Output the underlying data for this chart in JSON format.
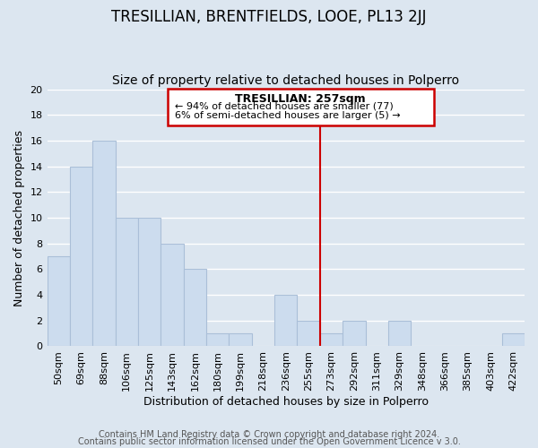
{
  "title": "TRESILLIAN, BRENTFIELDS, LOOE, PL13 2JJ",
  "subtitle": "Size of property relative to detached houses in Polperro",
  "xlabel": "Distribution of detached houses by size in Polperro",
  "ylabel": "Number of detached properties",
  "categories": [
    "50sqm",
    "69sqm",
    "88sqm",
    "106sqm",
    "125sqm",
    "143sqm",
    "162sqm",
    "180sqm",
    "199sqm",
    "218sqm",
    "236sqm",
    "255sqm",
    "273sqm",
    "292sqm",
    "311sqm",
    "329sqm",
    "348sqm",
    "366sqm",
    "385sqm",
    "403sqm",
    "422sqm"
  ],
  "values": [
    7,
    14,
    16,
    10,
    10,
    8,
    6,
    1,
    1,
    0,
    4,
    2,
    1,
    2,
    0,
    2,
    0,
    0,
    0,
    0,
    1
  ],
  "bar_color": "#ccdcee",
  "bar_edgecolor": "#aabfd8",
  "background_color": "#dce6f0",
  "grid_color": "#ffffff",
  "marker_line_color": "#cc0000",
  "annotation_box_color": "#ffffff",
  "annotation_box_edgecolor": "#cc0000",
  "marker_label": "TRESILLIAN: 257sqm",
  "annotation_line1": "← 94% of detached houses are smaller (77)",
  "annotation_line2": "6% of semi-detached houses are larger (5) →",
  "ylim": [
    0,
    20
  ],
  "yticks": [
    0,
    2,
    4,
    6,
    8,
    10,
    12,
    14,
    16,
    18,
    20
  ],
  "footer1": "Contains HM Land Registry data © Crown copyright and database right 2024.",
  "footer2": "Contains public sector information licensed under the Open Government Licence v 3.0.",
  "title_fontsize": 12,
  "subtitle_fontsize": 10,
  "xlabel_fontsize": 9,
  "ylabel_fontsize": 9,
  "tick_fontsize": 8,
  "annot_title_fontsize": 9,
  "annot_body_fontsize": 8,
  "footer_fontsize": 7
}
